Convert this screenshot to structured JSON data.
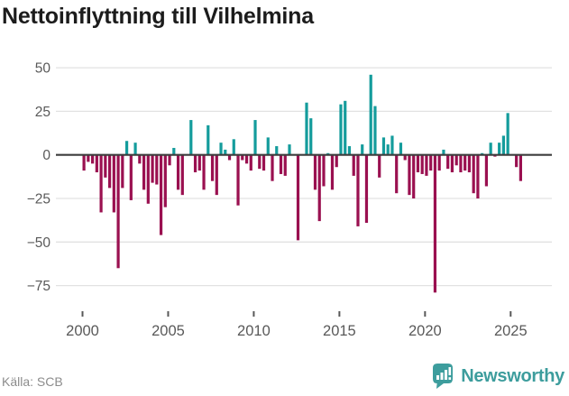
{
  "title": "Nettoinflyttning till Vilhelmina",
  "source": "Källa: SCB",
  "logo": {
    "text": "Newsworthy"
  },
  "colors": {
    "positive": "#149c9c",
    "negative": "#9a1050",
    "grid": "#e2e2e2",
    "zero_line": "#3d3d3d",
    "axis_text": "#595959",
    "title_text": "#1c1c1c",
    "source_text": "#8c8c8c",
    "logo": "#3d9d9d",
    "background": "#ffffff"
  },
  "chart_data": {
    "type": "bar",
    "title": "Nettoinflyttning till Vilhelmina",
    "xlabel": "",
    "ylabel": "",
    "frequency": "quarterly",
    "x_start": "2000Q1",
    "x_end": "2025Q3",
    "values": [
      -9,
      -4,
      -5,
      -10,
      -33,
      -13,
      -19,
      -33,
      -65,
      -19,
      8,
      -26,
      7,
      -5,
      -20,
      -28,
      -16,
      -17,
      -46,
      -30,
      -6,
      4,
      -20,
      -23,
      0,
      20,
      -10,
      -9,
      -20,
      17,
      -15,
      -23,
      7,
      3,
      -3,
      9,
      -29,
      -3,
      -5,
      -9,
      20,
      -8,
      -9,
      10,
      -15,
      5,
      -11,
      -12,
      6,
      0,
      -49,
      0,
      30,
      21,
      -20,
      -38,
      -18,
      1,
      -20,
      -7,
      29,
      31,
      5,
      -12,
      -41,
      6,
      -39,
      46,
      28,
      -13,
      10,
      6,
      11,
      -22,
      7,
      -3,
      -23,
      -25,
      -10,
      -11,
      -12,
      -9,
      -79,
      -9,
      3,
      -8,
      -10,
      -6,
      -10,
      -9,
      -10,
      -22,
      -25,
      1,
      -18,
      7,
      -1,
      7,
      11,
      24,
      0,
      -7,
      -15
    ],
    "y_ticks": [
      50,
      25,
      0,
      -25,
      -50,
      -75
    ],
    "x_ticks": [
      2000,
      2005,
      2010,
      2015,
      2020,
      2025
    ],
    "ylim": [
      -88,
      56
    ],
    "grid": true,
    "legend": false
  }
}
